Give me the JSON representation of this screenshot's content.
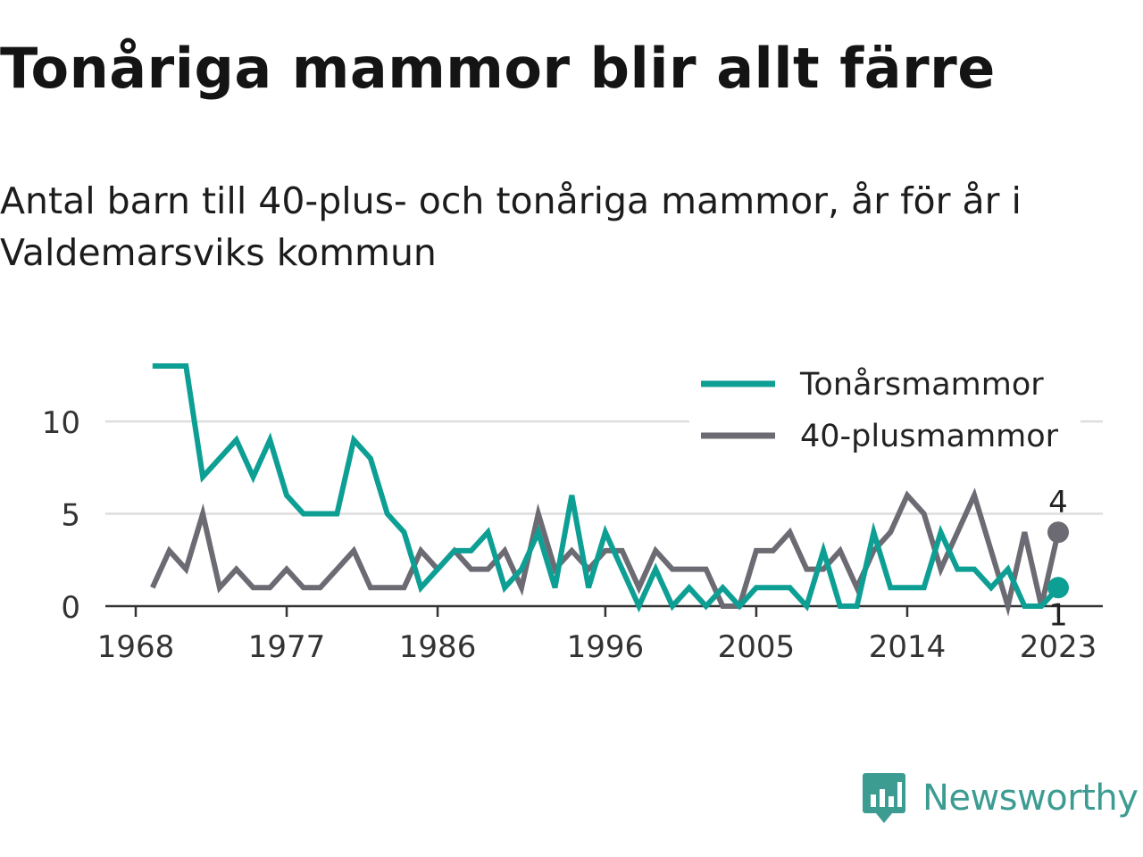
{
  "title": "Tonåriga mammor blir allt färre",
  "subtitle": "Antal barn till 40-plus- och tonåriga mammor, år för år i Valdemarsviks kommun",
  "brand": {
    "name": "Newsworthy",
    "icon": "newsworthy-logo-icon"
  },
  "colors": {
    "teen": "#0e9f94",
    "plus40": "#6c6b73",
    "grid": "#dedede",
    "axis": "#333333"
  },
  "chart_data": {
    "type": "line",
    "x_ticks": [
      1968,
      1977,
      1986,
      1996,
      2005,
      2014,
      2023
    ],
    "y_ticks": [
      0,
      5,
      10
    ],
    "xlim": [
      1968,
      2023
    ],
    "ylim": [
      0,
      13
    ],
    "grid": "horizontal",
    "legend_position": "top-right",
    "x": [
      1969,
      1970,
      1971,
      1972,
      1973,
      1974,
      1975,
      1976,
      1977,
      1978,
      1979,
      1980,
      1981,
      1982,
      1983,
      1984,
      1985,
      1986,
      1987,
      1988,
      1989,
      1990,
      1991,
      1992,
      1993,
      1994,
      1995,
      1996,
      1997,
      1998,
      1999,
      2000,
      2001,
      2002,
      2003,
      2004,
      2005,
      2006,
      2007,
      2008,
      2009,
      2010,
      2011,
      2012,
      2013,
      2014,
      2015,
      2016,
      2017,
      2018,
      2019,
      2020,
      2021,
      2022,
      2023
    ],
    "series": [
      {
        "name": "Tonårsmammor",
        "color": "#0e9f94",
        "values": [
          13,
          13,
          13,
          7,
          8,
          9,
          7,
          9,
          6,
          5,
          5,
          5,
          9,
          8,
          5,
          4,
          1,
          2,
          3,
          3,
          4,
          1,
          2,
          4,
          1,
          6,
          1,
          4,
          2,
          0,
          2,
          0,
          1,
          0,
          1,
          0,
          1,
          1,
          1,
          0,
          3,
          0,
          0,
          4,
          1,
          1,
          1,
          4,
          2,
          2,
          1,
          2,
          0,
          0,
          1
        ],
        "end_label": "1"
      },
      {
        "name": "40-plusmammor",
        "color": "#6c6b73",
        "values": [
          1,
          3,
          2,
          5,
          1,
          2,
          1,
          1,
          2,
          1,
          1,
          2,
          3,
          1,
          1,
          1,
          3,
          2,
          3,
          2,
          2,
          3,
          1,
          5,
          2,
          3,
          2,
          3,
          3,
          1,
          3,
          2,
          2,
          2,
          0,
          0,
          3,
          3,
          4,
          2,
          2,
          3,
          1,
          3,
          4,
          6,
          5,
          2,
          4,
          6,
          3,
          0,
          4,
          0,
          4
        ],
        "end_label": "4"
      }
    ]
  }
}
